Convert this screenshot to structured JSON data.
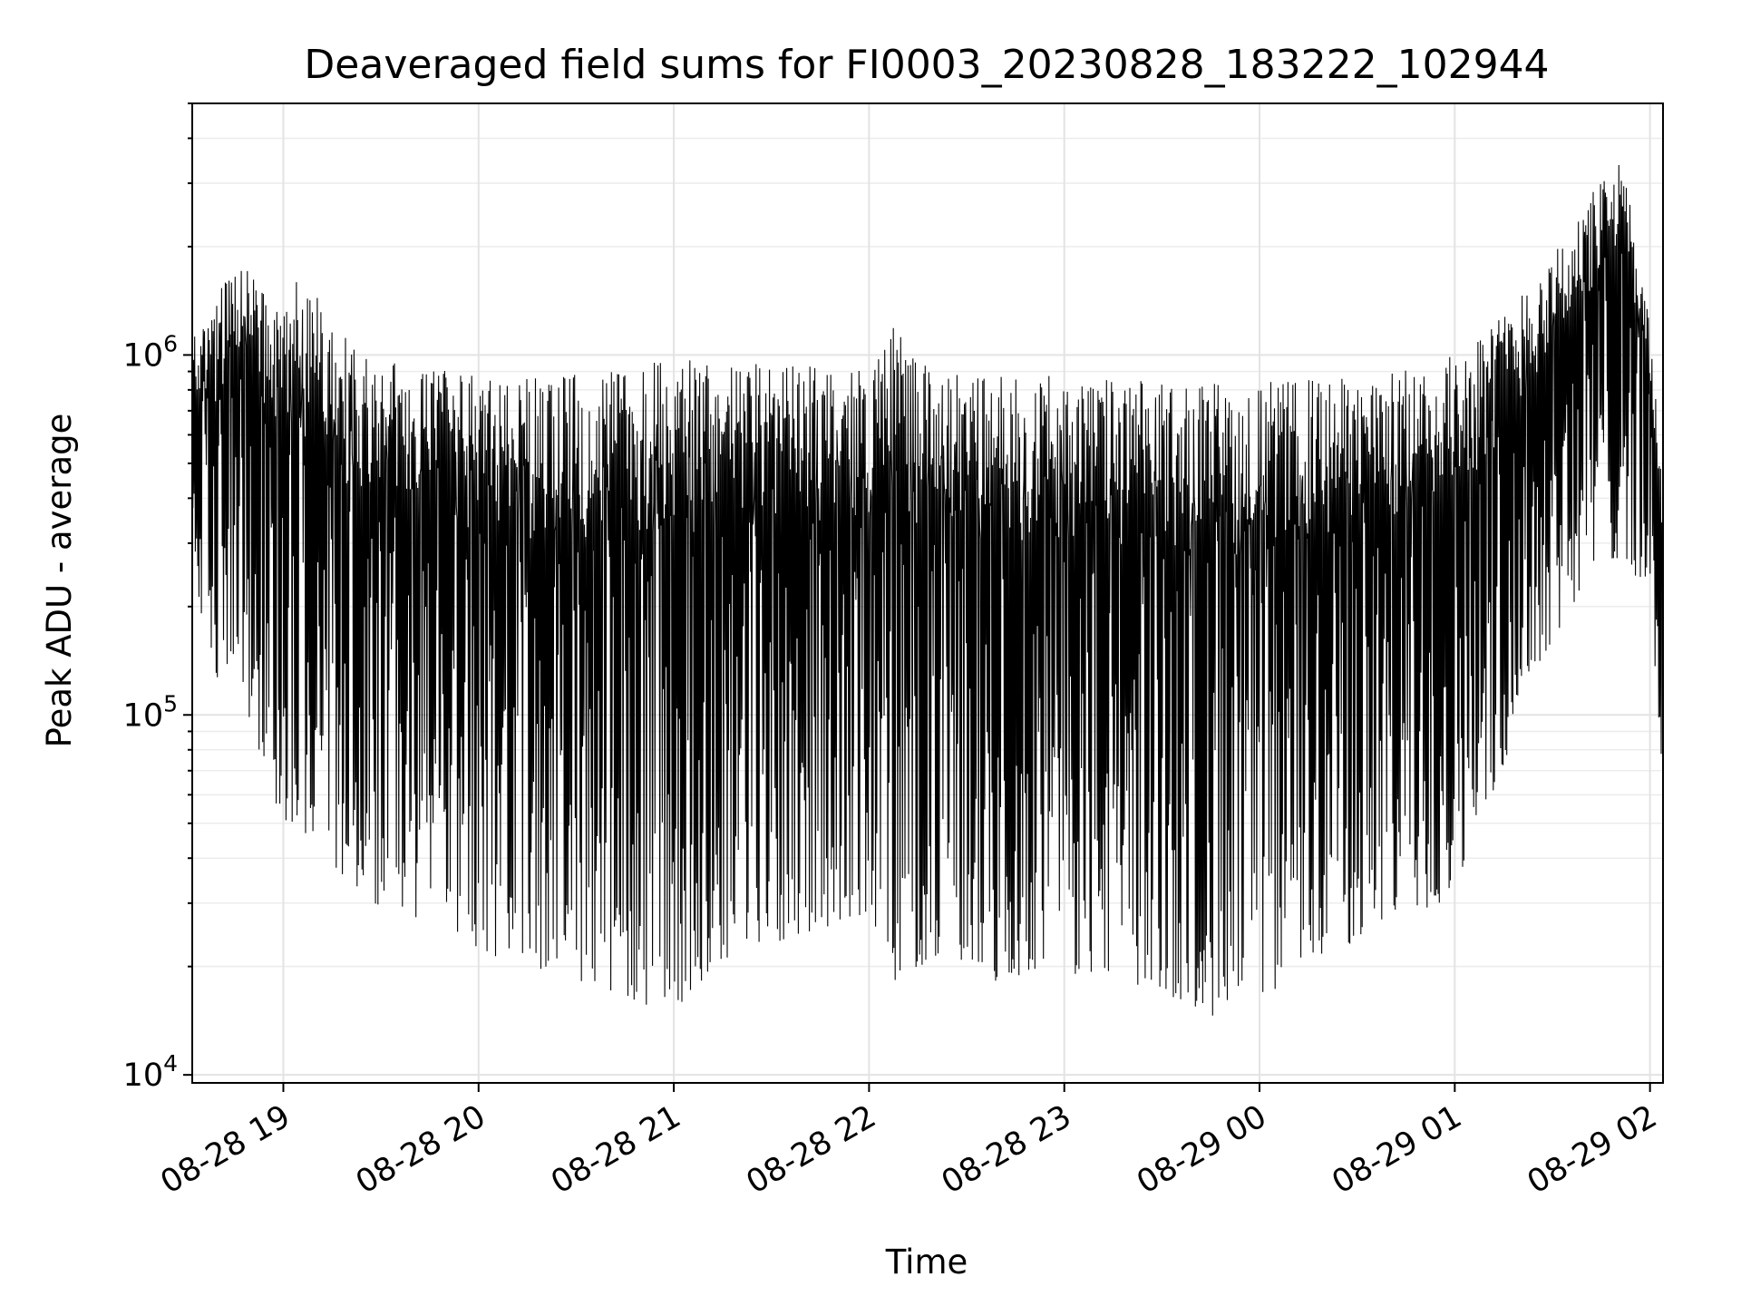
{
  "chart_data": {
    "type": "line",
    "title": "Deaveraged field sums for FI0003_20230828_183222_102944",
    "xlabel": "Time",
    "ylabel": "Peak ADU - average",
    "yscale": "log",
    "grid": true,
    "xlim": [
      "2023-08-28T18:32",
      "2023-08-29T02:04"
    ],
    "ylim": [
      9500,
      5000000
    ],
    "x_ticks": [
      {
        "t": "2023-08-28T19:00",
        "label": "08-28 19"
      },
      {
        "t": "2023-08-28T20:00",
        "label": "08-28 20"
      },
      {
        "t": "2023-08-28T21:00",
        "label": "08-28 21"
      },
      {
        "t": "2023-08-28T22:00",
        "label": "08-28 22"
      },
      {
        "t": "2023-08-28T23:00",
        "label": "08-28 23"
      },
      {
        "t": "2023-08-29T00:00",
        "label": "08-29 00"
      },
      {
        "t": "2023-08-29T01:00",
        "label": "08-29 01"
      },
      {
        "t": "2023-08-29T02:00",
        "label": "08-29 02"
      }
    ],
    "y_ticks": [
      {
        "value": 10000,
        "base": "10",
        "exp": "4"
      },
      {
        "value": 100000,
        "base": "10",
        "exp": "5"
      },
      {
        "value": 1000000,
        "base": "10",
        "exp": "6"
      }
    ],
    "series": [
      {
        "color": "#000000",
        "x": [
          "2023-08-28T18:32",
          "2023-08-28T18:40",
          "2023-08-28T18:48",
          "2023-08-28T18:56",
          "2023-08-28T19:04",
          "2023-08-28T19:12",
          "2023-08-28T19:20",
          "2023-08-28T19:28",
          "2023-08-28T19:36",
          "2023-08-28T19:44",
          "2023-08-28T19:52",
          "2023-08-28T20:00",
          "2023-08-28T20:08",
          "2023-08-28T20:16",
          "2023-08-28T20:24",
          "2023-08-28T20:32",
          "2023-08-28T20:40",
          "2023-08-28T20:48",
          "2023-08-28T20:56",
          "2023-08-28T21:04",
          "2023-08-28T21:12",
          "2023-08-28T21:20",
          "2023-08-28T21:28",
          "2023-08-28T21:36",
          "2023-08-28T21:44",
          "2023-08-28T21:52",
          "2023-08-28T22:00",
          "2023-08-28T22:08",
          "2023-08-28T22:16",
          "2023-08-28T22:24",
          "2023-08-28T22:32",
          "2023-08-28T22:40",
          "2023-08-28T22:48",
          "2023-08-28T22:56",
          "2023-08-28T23:04",
          "2023-08-28T23:12",
          "2023-08-28T23:20",
          "2023-08-28T23:28",
          "2023-08-28T23:36",
          "2023-08-28T23:44",
          "2023-08-28T23:52",
          "2023-08-29T00:00",
          "2023-08-29T00:08",
          "2023-08-29T00:16",
          "2023-08-29T00:24",
          "2023-08-29T00:32",
          "2023-08-29T00:40",
          "2023-08-29T00:48",
          "2023-08-29T00:56",
          "2023-08-29T01:04",
          "2023-08-29T01:12",
          "2023-08-29T01:20",
          "2023-08-29T01:28",
          "2023-08-29T01:36",
          "2023-08-29T01:44",
          "2023-08-29T01:52",
          "2023-08-29T02:00",
          "2023-08-29T02:04"
        ],
        "high": [
          1100000,
          1500000,
          1900000,
          1500000,
          1700000,
          1400000,
          1100000,
          1000000,
          950000,
          920000,
          900000,
          880000,
          870000,
          870000,
          880000,
          900000,
          920000,
          950000,
          960000,
          970000,
          960000,
          950000,
          940000,
          930000,
          930000,
          920000,
          900000,
          1300000,
          950000,
          900000,
          880000,
          870000,
          880000,
          880000,
          870000,
          860000,
          860000,
          850000,
          850000,
          850000,
          850000,
          840000,
          850000,
          860000,
          860000,
          880000,
          900000,
          920000,
          950000,
          1100000,
          1250000,
          1500000,
          1800000,
          2300000,
          3000000,
          3500000,
          1200000,
          500000
        ],
        "low": [
          220000,
          120000,
          110000,
          60000,
          45000,
          40000,
          35000,
          30000,
          28000,
          27000,
          25000,
          22000,
          21000,
          20000,
          19000,
          18000,
          17000,
          16000,
          15000,
          16000,
          20000,
          22000,
          23000,
          24000,
          25000,
          27000,
          28000,
          18000,
          20000,
          22000,
          20000,
          18000,
          19000,
          20000,
          19000,
          18000,
          18000,
          17000,
          16000,
          15000,
          13000,
          16000,
          18000,
          20000,
          22000,
          24000,
          26000,
          28000,
          30000,
          40000,
          60000,
          100000,
          150000,
          200000,
          250000,
          280000,
          200000,
          65000
        ]
      }
    ]
  }
}
